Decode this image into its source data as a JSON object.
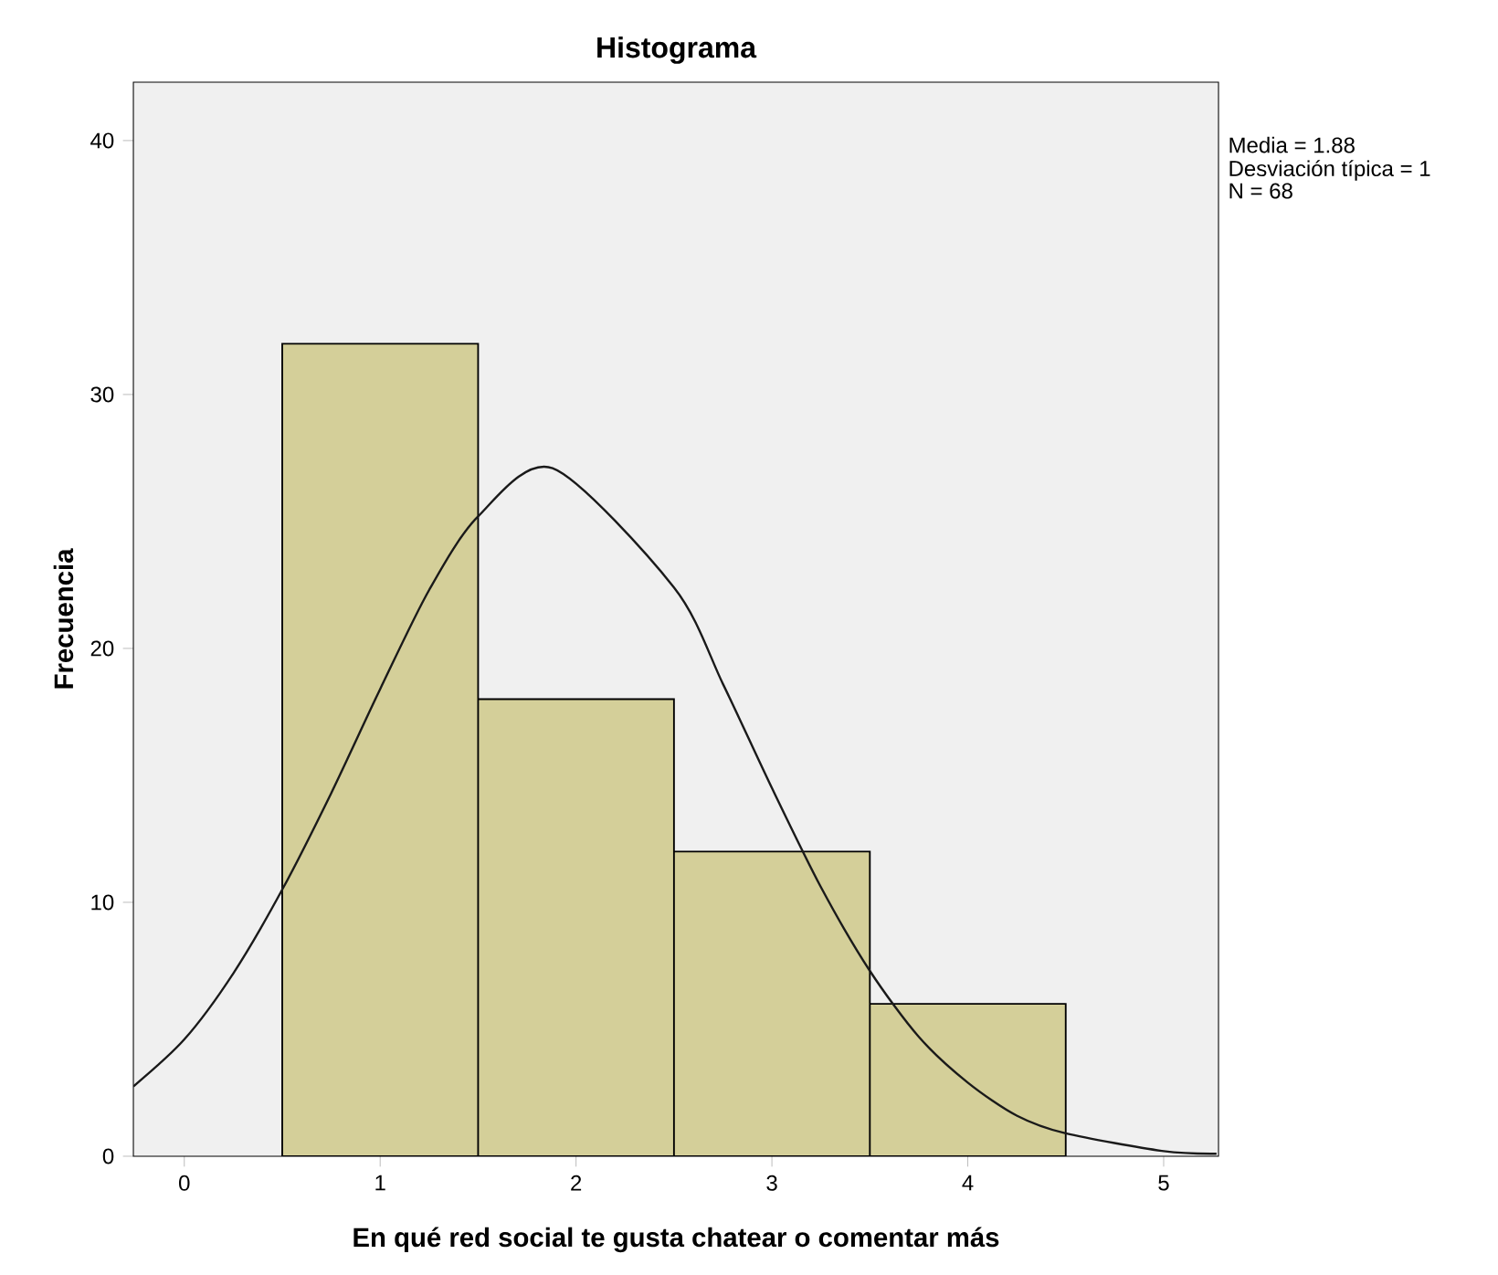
{
  "chart_data": {
    "type": "histogram",
    "title": "Histograma",
    "xlabel": "En qué red social te gusta chatear o comentar más",
    "ylabel": "Frecuencia",
    "bins": [
      0.5,
      1.5,
      2.5,
      3.5,
      4.5
    ],
    "values": [
      32,
      18,
      12,
      6
    ],
    "color": "#d4cf99",
    "series": [
      {
        "type": "line",
        "color": "#1a1a1a",
        "x": [
          -0.26,
          0,
          0.25,
          0.5,
          0.75,
          1,
          1.25,
          1.5,
          1.88,
          2.5,
          2.75,
          3,
          3.25,
          3.5,
          3.75,
          4,
          4.25,
          4.5,
          5,
          5.27
        ],
        "values": [
          2.75,
          4.6,
          7.2,
          10.5,
          14.3,
          18.4,
          22.3,
          25.2,
          27.1,
          22.4,
          18.6,
          14.5,
          10.6,
          7.3,
          4.7,
          2.9,
          1.6,
          0.9,
          0.2,
          0.1
        ]
      }
    ],
    "xlim": [
      -0.26,
      5.28
    ],
    "ylim": [
      0,
      42.3
    ],
    "xticks": [
      0,
      1,
      2,
      3,
      4,
      5
    ],
    "yticks": [
      0,
      10,
      20,
      30,
      40
    ],
    "grid": false,
    "marker": "none",
    "annotations": [
      "Media = 1.88",
      "Desviación típica = 1",
      "N = 68"
    ]
  }
}
